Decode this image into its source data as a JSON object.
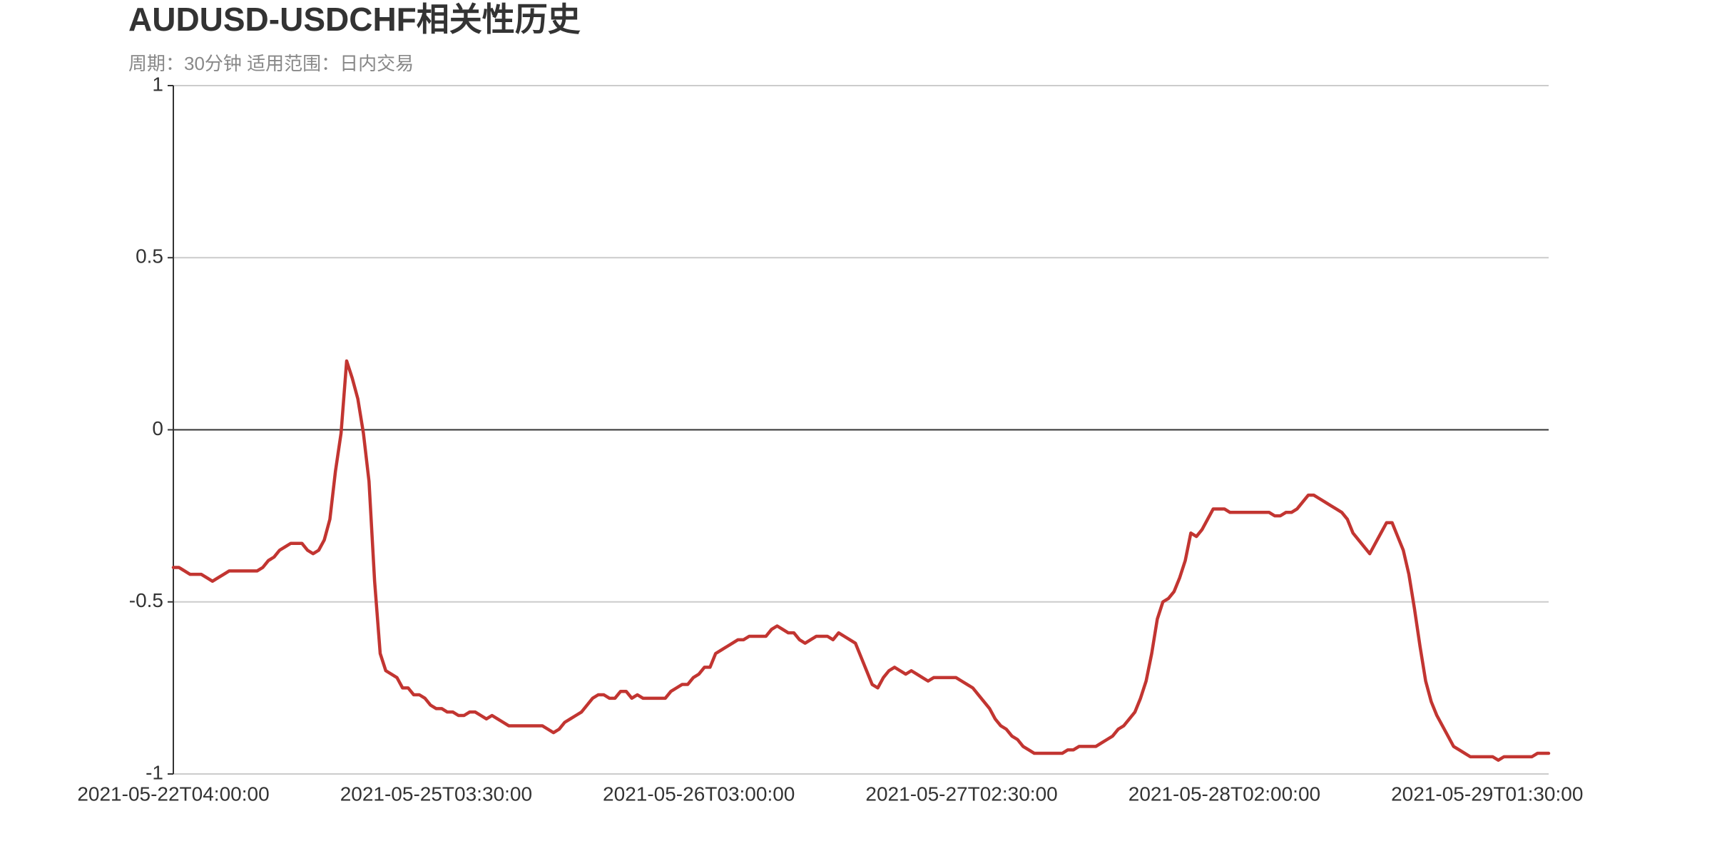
{
  "chart_data": {
    "type": "line",
    "title": "AUDUSD-USDCHF相关性历史",
    "subtitle": "周期：30分钟 适用范围：日内交易",
    "color": "#c23531",
    "ylim": [
      -1,
      1
    ],
    "yticks": [
      -1,
      -0.5,
      0,
      0.5,
      1
    ],
    "grid": true,
    "categories": [
      "2021-05-22T04:00:00",
      null,
      null,
      null,
      null,
      null,
      null,
      null,
      null,
      null,
      null,
      null,
      null,
      null,
      null,
      null,
      null,
      null,
      null,
      null,
      null,
      null,
      null,
      null,
      null,
      null,
      null,
      null,
      null,
      null,
      null,
      null,
      null,
      null,
      null,
      null,
      null,
      null,
      null,
      null,
      null,
      null,
      null,
      null,
      null,
      null,
      null,
      "2021-05-25T03:30:00",
      null,
      null,
      null,
      null,
      null,
      null,
      null,
      null,
      null,
      null,
      null,
      null,
      null,
      null,
      null,
      null,
      null,
      null,
      null,
      null,
      null,
      null,
      null,
      null,
      null,
      null,
      null,
      null,
      null,
      null,
      null,
      null,
      null,
      null,
      null,
      null,
      null,
      null,
      null,
      null,
      null,
      null,
      null,
      null,
      null,
      null,
      "2021-05-26T03:00:00",
      null,
      null,
      null,
      null,
      null,
      null,
      null,
      null,
      null,
      null,
      null,
      null,
      null,
      null,
      null,
      null,
      null,
      null,
      null,
      null,
      null,
      null,
      null,
      null,
      null,
      null,
      null,
      null,
      null,
      null,
      null,
      null,
      null,
      null,
      null,
      null,
      null,
      null,
      null,
      null,
      null,
      null,
      null,
      null,
      null,
      null,
      "2021-05-27T02:30:00",
      null,
      null,
      null,
      null,
      null,
      null,
      null,
      null,
      null,
      null,
      null,
      null,
      null,
      null,
      null,
      null,
      null,
      null,
      null,
      null,
      null,
      null,
      null,
      null,
      null,
      null,
      null,
      null,
      null,
      null,
      null,
      null,
      null,
      null,
      null,
      null,
      null,
      null,
      null,
      null,
      null,
      null,
      null,
      null,
      null,
      null,
      "2021-05-28T02:00:00",
      null,
      null,
      null,
      null,
      null,
      null,
      null,
      null,
      null,
      null,
      null,
      null,
      null,
      null,
      null,
      null,
      null,
      null,
      null,
      null,
      null,
      null,
      null,
      null,
      null,
      null,
      null,
      null,
      null,
      null,
      null,
      null,
      null,
      null,
      null,
      null,
      null,
      null,
      null,
      null,
      null,
      null,
      null,
      null,
      null,
      null,
      "2021-05-29T01:30:00",
      null,
      null,
      null,
      null,
      null,
      null,
      null,
      null,
      null,
      null,
      null
    ],
    "values": [
      -0.4,
      -0.4,
      -0.41,
      -0.42,
      -0.42,
      -0.42,
      -0.43,
      -0.44,
      -0.43,
      -0.42,
      -0.41,
      -0.41,
      -0.41,
      -0.41,
      -0.41,
      -0.41,
      -0.4,
      -0.38,
      -0.37,
      -0.35,
      -0.34,
      -0.33,
      -0.33,
      -0.33,
      -0.35,
      -0.36,
      -0.35,
      -0.32,
      -0.26,
      -0.12,
      -0.01,
      0.2,
      0.15,
      0.09,
      -0.01,
      -0.15,
      -0.44,
      -0.65,
      -0.7,
      -0.71,
      -0.72,
      -0.75,
      -0.75,
      -0.77,
      -0.77,
      -0.78,
      -0.8,
      -0.81,
      -0.81,
      -0.82,
      -0.82,
      -0.83,
      -0.83,
      -0.82,
      -0.82,
      -0.83,
      -0.84,
      -0.83,
      -0.84,
      -0.85,
      -0.86,
      -0.86,
      -0.86,
      -0.86,
      -0.86,
      -0.86,
      -0.86,
      -0.87,
      -0.88,
      -0.87,
      -0.85,
      -0.84,
      -0.83,
      -0.82,
      -0.8,
      -0.78,
      -0.77,
      -0.77,
      -0.78,
      -0.78,
      -0.76,
      -0.76,
      -0.78,
      -0.77,
      -0.78,
      -0.78,
      -0.78,
      -0.78,
      -0.78,
      -0.76,
      -0.75,
      -0.74,
      -0.74,
      -0.72,
      -0.71,
      -0.69,
      -0.69,
      -0.65,
      -0.64,
      -0.63,
      -0.62,
      -0.61,
      -0.61,
      -0.6,
      -0.6,
      -0.6,
      -0.6,
      -0.58,
      -0.57,
      -0.58,
      -0.59,
      -0.59,
      -0.61,
      -0.62,
      -0.61,
      -0.6,
      -0.6,
      -0.6,
      -0.61,
      -0.59,
      -0.6,
      -0.61,
      -0.62,
      -0.66,
      -0.7,
      -0.74,
      -0.75,
      -0.72,
      -0.7,
      -0.69,
      -0.7,
      -0.71,
      -0.7,
      -0.71,
      -0.72,
      -0.73,
      -0.72,
      -0.72,
      -0.72,
      -0.72,
      -0.72,
      -0.73,
      -0.74,
      -0.75,
      -0.77,
      -0.79,
      -0.81,
      -0.84,
      -0.86,
      -0.87,
      -0.89,
      -0.9,
      -0.92,
      -0.93,
      -0.94,
      -0.94,
      -0.94,
      -0.94,
      -0.94,
      -0.94,
      -0.93,
      -0.93,
      -0.92,
      -0.92,
      -0.92,
      -0.92,
      -0.91,
      -0.9,
      -0.89,
      -0.87,
      -0.86,
      -0.84,
      -0.82,
      -0.78,
      -0.73,
      -0.65,
      -0.55,
      -0.5,
      -0.49,
      -0.47,
      -0.43,
      -0.38,
      -0.3,
      -0.31,
      -0.29,
      -0.26,
      -0.23,
      -0.23,
      -0.23,
      -0.24,
      -0.24,
      -0.24,
      -0.24,
      -0.24,
      -0.24,
      -0.24,
      -0.24,
      -0.25,
      -0.25,
      -0.24,
      -0.24,
      -0.23,
      -0.21,
      -0.19,
      -0.19,
      -0.2,
      -0.21,
      -0.22,
      -0.23,
      -0.24,
      -0.26,
      -0.3,
      -0.32,
      -0.34,
      -0.36,
      -0.33,
      -0.3,
      -0.27,
      -0.27,
      -0.31,
      -0.35,
      -0.42,
      -0.52,
      -0.63,
      -0.73,
      -0.79,
      -0.83,
      -0.86,
      -0.89,
      -0.92,
      -0.93,
      -0.94,
      -0.95,
      -0.95,
      -0.95,
      -0.95,
      -0.95,
      -0.96,
      -0.95,
      -0.95,
      -0.95,
      -0.95,
      -0.95,
      -0.95,
      -0.94,
      -0.94,
      -0.94
    ]
  }
}
